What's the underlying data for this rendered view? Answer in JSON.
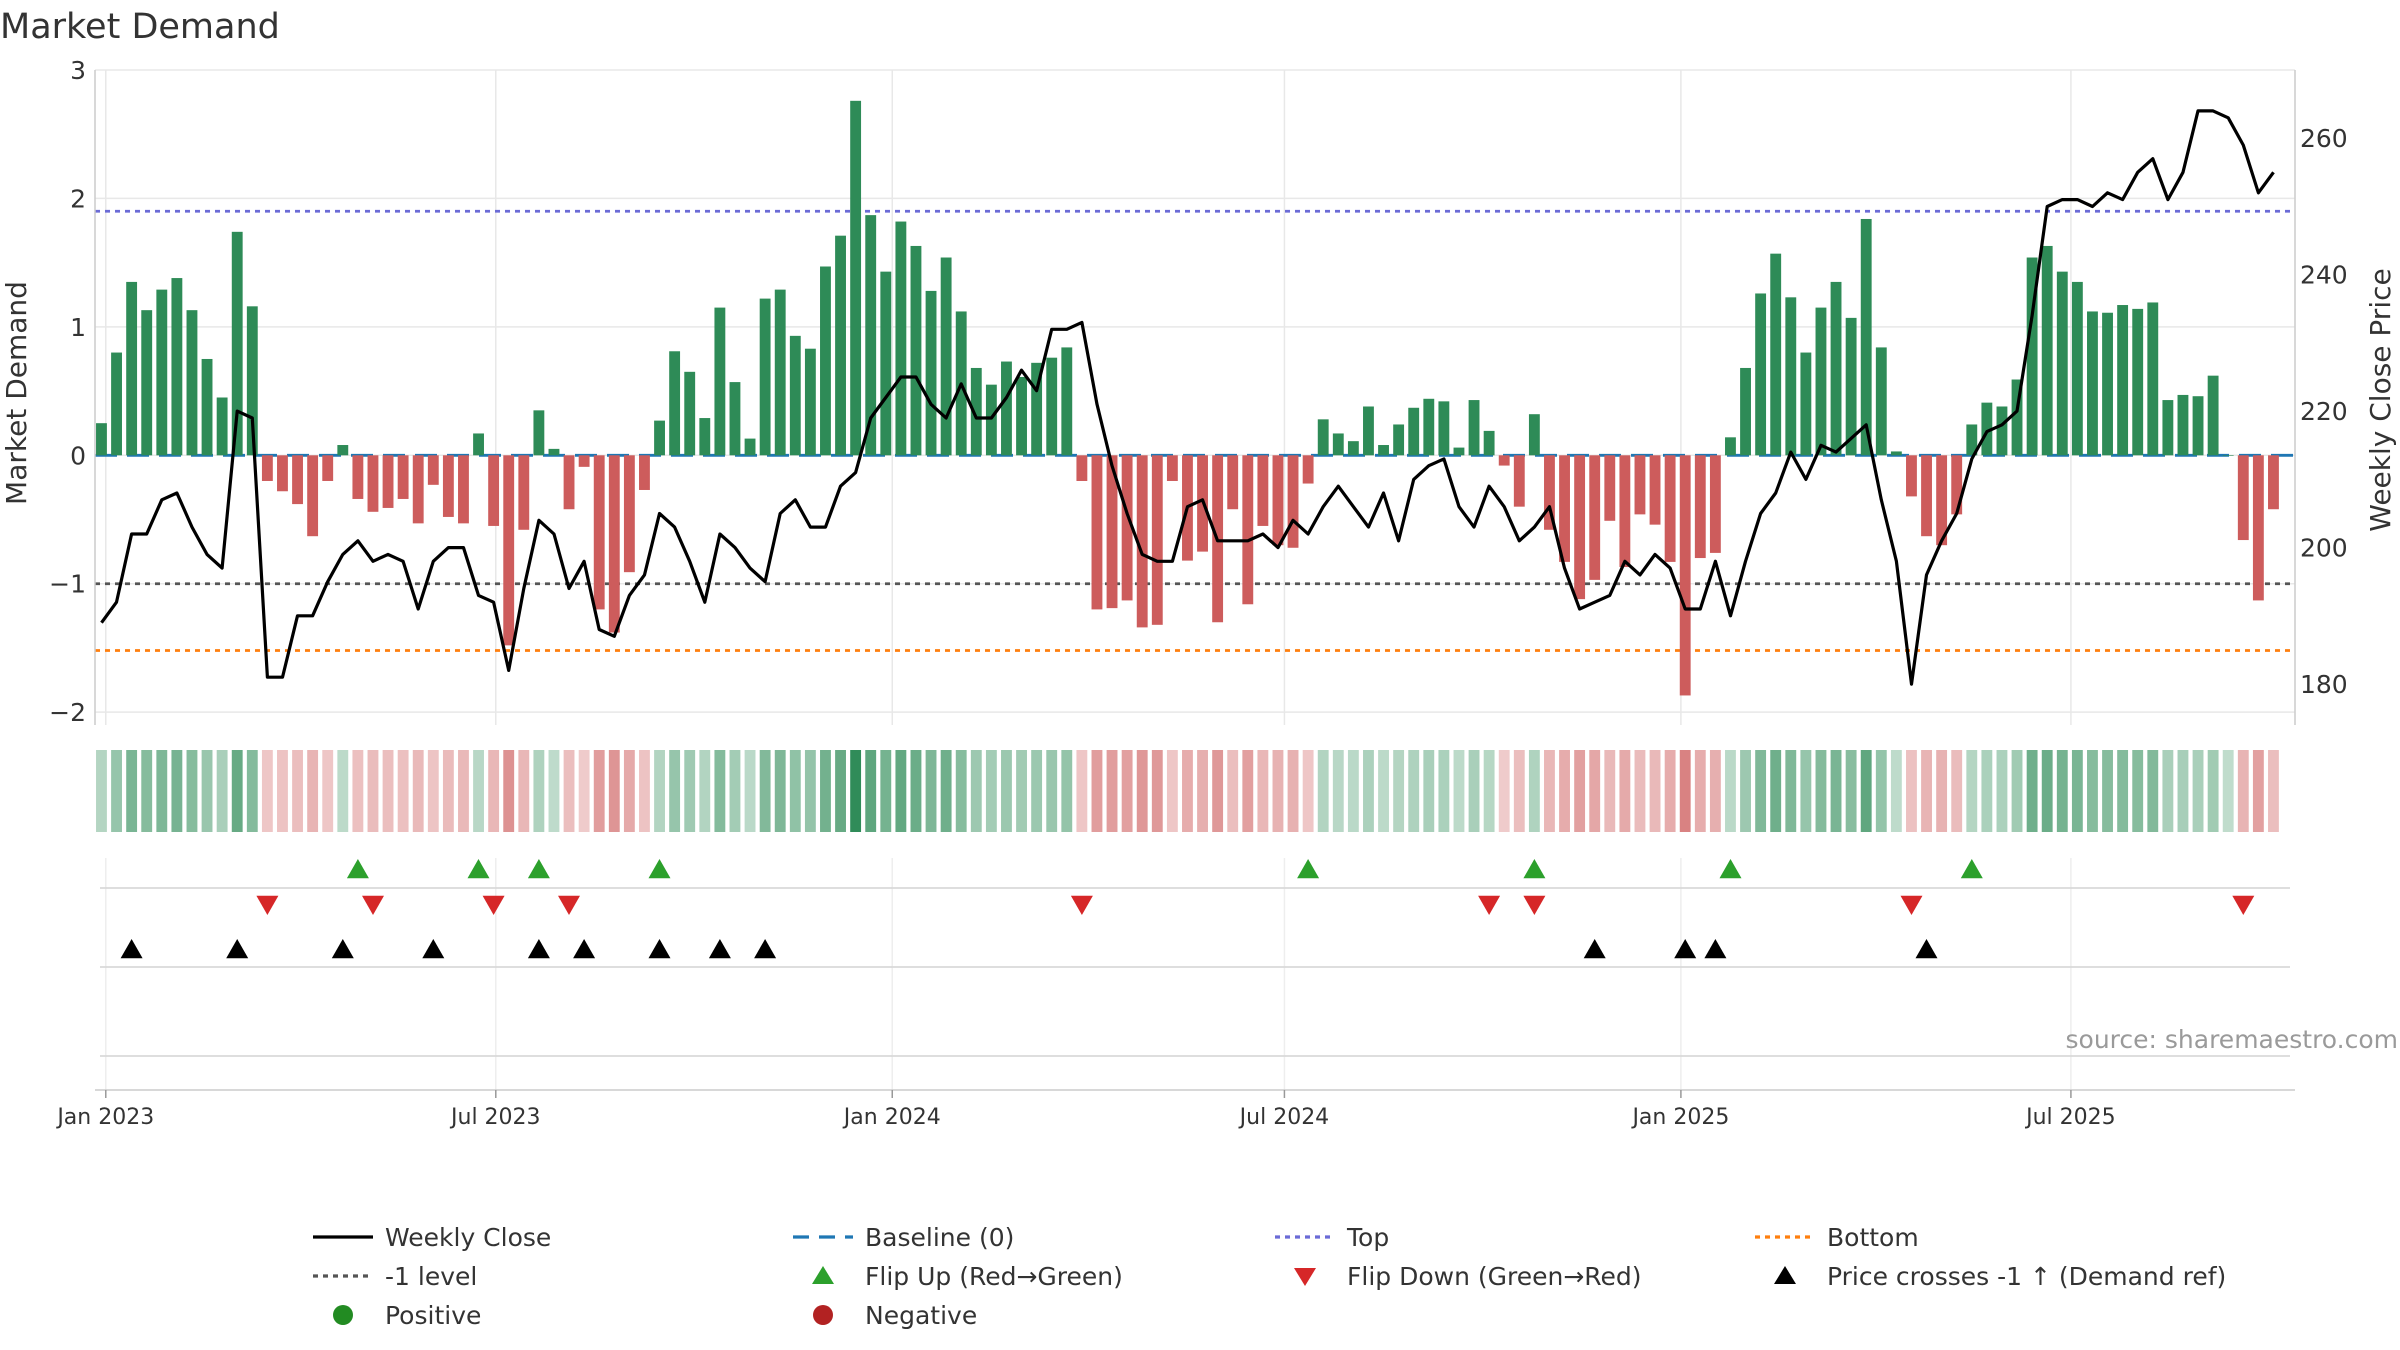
{
  "chart_data": {
    "type": "bar",
    "title": "Market Demand",
    "ylabel_left": "Market Demand",
    "ylabel_right": "Weekly Close Price",
    "ylim_left": [
      -2.1,
      3.0
    ],
    "yticks_left": [
      3,
      2,
      1,
      0,
      -1,
      -2
    ],
    "ytick_labels_left": [
      "3",
      "2",
      "1",
      "0",
      "−1",
      "−2"
    ],
    "ylim_right": [
      174,
      270
    ],
    "yticks_right": [
      260,
      240,
      220,
      200,
      180
    ],
    "ytick_labels_right": [
      "260",
      "240",
      "220",
      "200",
      "180"
    ],
    "x_range": [
      "2022-12-27",
      "2025-10-13"
    ],
    "x_ticks": [
      {
        "date": "2023-01-01",
        "label": "Jan 2023"
      },
      {
        "date": "2023-07-01",
        "label": "Jul 2023"
      },
      {
        "date": "2024-01-01",
        "label": "Jan 2024"
      },
      {
        "date": "2024-07-01",
        "label": "Jul 2024"
      },
      {
        "date": "2025-01-01",
        "label": "Jan 2025"
      },
      {
        "date": "2025-07-01",
        "label": "Jul 2025"
      }
    ],
    "series": [
      {
        "name": "Market Demand",
        "start": "2022-12-30",
        "interval_days": 7,
        "values": [
          0.25,
          0.8,
          1.35,
          1.13,
          1.29,
          1.38,
          1.13,
          0.75,
          0.45,
          1.74,
          1.16,
          -0.2,
          -0.28,
          -0.38,
          -0.63,
          -0.2,
          0.08,
          -0.34,
          -0.44,
          -0.41,
          -0.34,
          -0.53,
          -0.23,
          -0.48,
          -0.53,
          0.17,
          -0.55,
          -1.48,
          -0.58,
          0.35,
          0.05,
          -0.42,
          -0.09,
          -1.2,
          -1.38,
          -0.91,
          -0.27,
          0.27,
          0.81,
          0.65,
          0.29,
          1.15,
          0.57,
          0.13,
          1.22,
          1.29,
          0.93,
          0.83,
          1.47,
          1.71,
          2.76,
          1.87,
          1.43,
          1.82,
          1.63,
          1.28,
          1.54,
          1.12,
          0.68,
          0.55,
          0.73,
          0.61,
          0.72,
          0.76,
          0.84,
          -0.2,
          -1.2,
          -1.19,
          -1.13,
          -1.34,
          -1.32,
          -0.2,
          -0.82,
          -0.75,
          -1.3,
          -0.42,
          -1.16,
          -0.55,
          -0.7,
          -0.72,
          -0.22,
          0.28,
          0.17,
          0.11,
          0.38,
          0.08,
          0.24,
          0.37,
          0.44,
          0.42,
          0.06,
          0.43,
          0.19,
          -0.08,
          -0.4,
          0.32,
          -0.58,
          -0.83,
          -1.12,
          -0.97,
          -0.51,
          -0.87,
          -0.46,
          -0.54,
          -0.83,
          -1.87,
          -0.8,
          -0.76,
          0.14,
          0.68,
          1.26,
          1.57,
          1.23,
          0.8,
          1.15,
          1.35,
          1.07,
          1.84,
          0.84,
          0.03,
          -0.32,
          -0.63,
          -0.7,
          -0.46,
          0.24,
          0.41,
          0.38,
          0.59,
          1.54,
          1.63,
          1.43,
          1.35,
          1.12,
          1.11,
          1.17,
          1.14,
          1.19,
          0.43,
          0.47,
          0.46,
          0.62,
          0.0,
          -0.66,
          -1.13,
          -0.42
        ]
      },
      {
        "name": "Weekly Close",
        "start": "2022-12-30",
        "interval_days": 7,
        "values": [
          189,
          192,
          202,
          202,
          207,
          208,
          203,
          199,
          197,
          220,
          219,
          181,
          181,
          190,
          190,
          195,
          199,
          201,
          198,
          199,
          198,
          191,
          198,
          200,
          200,
          193,
          192,
          182,
          194,
          204,
          202,
          194,
          198,
          188,
          187,
          193,
          196,
          205,
          203,
          198,
          192,
          202,
          200,
          197,
          195,
          205,
          207,
          203,
          203,
          209,
          211,
          219,
          222,
          225,
          225,
          221,
          219,
          224,
          219,
          219,
          222,
          226,
          223,
          232,
          232,
          233,
          221,
          212,
          205,
          199,
          198,
          198,
          206,
          207,
          201,
          201,
          201,
          202,
          200,
          204,
          202,
          206,
          209,
          206,
          203,
          208,
          201,
          210,
          212,
          213,
          206,
          203,
          209,
          206,
          201,
          203,
          206,
          197,
          191,
          192,
          193,
          198,
          196,
          199,
          197,
          191,
          191,
          198,
          190,
          198,
          205,
          208,
          214,
          210,
          215,
          214,
          216,
          218,
          207,
          198,
          180,
          196,
          201,
          205,
          213,
          217,
          218,
          220,
          234,
          250,
          251,
          251,
          250,
          252,
          251,
          255,
          257,
          251,
          255,
          264,
          264,
          263,
          259,
          252,
          255
        ]
      }
    ],
    "lines": [
      {
        "name": "Baseline (0)",
        "y": 0,
        "color": "#1f77b4",
        "style": "dashed"
      },
      {
        "name": "Top",
        "y": 1.9,
        "color": "#6b6bd6",
        "style": "dotted"
      },
      {
        "name": "Bottom",
        "y": -1.52,
        "color": "#ff7f0e",
        "style": "dotted"
      },
      {
        "name": "-1 level",
        "y": -1,
        "color": "#555555",
        "style": "dotted"
      }
    ],
    "flip_up_weeks": [
      17,
      25,
      29,
      37,
      80,
      95,
      108,
      124
    ],
    "flip_down_weeks": [
      11,
      18,
      26,
      31,
      65,
      92,
      95,
      120,
      142
    ],
    "price_cross_weeks": [
      2,
      9,
      16,
      22,
      29,
      32,
      37,
      41,
      44,
      99,
      105,
      107,
      121
    ],
    "colors": {
      "positive_bar": "#2e8b57",
      "negative_bar": "#cd5c5c",
      "close_line": "#000000",
      "flip_up": "#2ca02c",
      "flip_down": "#d62728",
      "price_cross": "#000000",
      "positive_dot": "#228b22",
      "negative_dot": "#b22222",
      "grid": "#e8e8e8",
      "axis": "#cccccc"
    },
    "legend": [
      {
        "label": "Weekly Close",
        "kind": "line-solid",
        "color": "#000000"
      },
      {
        "label": "Baseline (0)",
        "kind": "line-dashed",
        "color": "#1f77b4"
      },
      {
        "label": "Top",
        "kind": "line-dotted",
        "color": "#6b6bd6"
      },
      {
        "label": "Bottom",
        "kind": "line-dotted",
        "color": "#ff7f0e"
      },
      {
        "label": "-1 level",
        "kind": "line-dotted",
        "color": "#555555"
      },
      {
        "label": "Flip Up (Red→Green)",
        "kind": "tri-up",
        "color": "#2ca02c"
      },
      {
        "label": "Flip Down (Green→Red)",
        "kind": "tri-down",
        "color": "#d62728"
      },
      {
        "label": "Price crosses -1 ↑ (Demand ref)",
        "kind": "tri-up",
        "color": "#000000"
      },
      {
        "label": "Positive",
        "kind": "dot",
        "color": "#228b22"
      },
      {
        "label": "Negative",
        "kind": "dot",
        "color": "#b22222"
      }
    ],
    "source": "source: sharemaestro.com"
  }
}
